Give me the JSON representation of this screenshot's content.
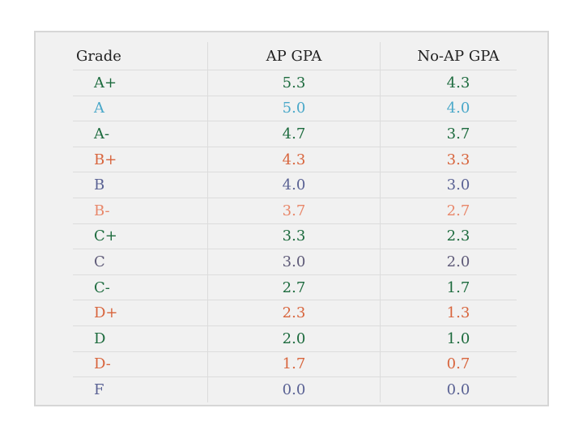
{
  "table": {
    "columns": [
      "Grade",
      "AP GPA",
      "No-AP GPA"
    ],
    "header_color": "#222222",
    "rows": [
      [
        "A+",
        "5.3",
        "4.3"
      ],
      [
        "A",
        "5.0",
        "4.0"
      ],
      [
        "A-",
        "4.7",
        "3.7"
      ],
      [
        "B+",
        "4.3",
        "3.3"
      ],
      [
        "B",
        "4.0",
        "3.0"
      ],
      [
        "B-",
        "3.7",
        "2.7"
      ],
      [
        "C+",
        "3.3",
        "2.3"
      ],
      [
        "C",
        "3.0",
        "2.0"
      ],
      [
        "C-",
        "2.7",
        "1.7"
      ],
      [
        "D+",
        "2.3",
        "1.3"
      ],
      [
        "D",
        "2.0",
        "1.0"
      ],
      [
        "D-",
        "1.7",
        "0.7"
      ],
      [
        "F",
        "0.0",
        "0.0"
      ]
    ],
    "row_colors": [
      "#1d6b3e",
      "#4aa8c9",
      "#1d6b3e",
      "#d8653d",
      "#5a6294",
      "#e8876a",
      "#1d6b3e",
      "#5e5a78",
      "#1d6b3e",
      "#d8653d",
      "#1d6b3e",
      "#d8653d",
      "#5a6294"
    ]
  }
}
